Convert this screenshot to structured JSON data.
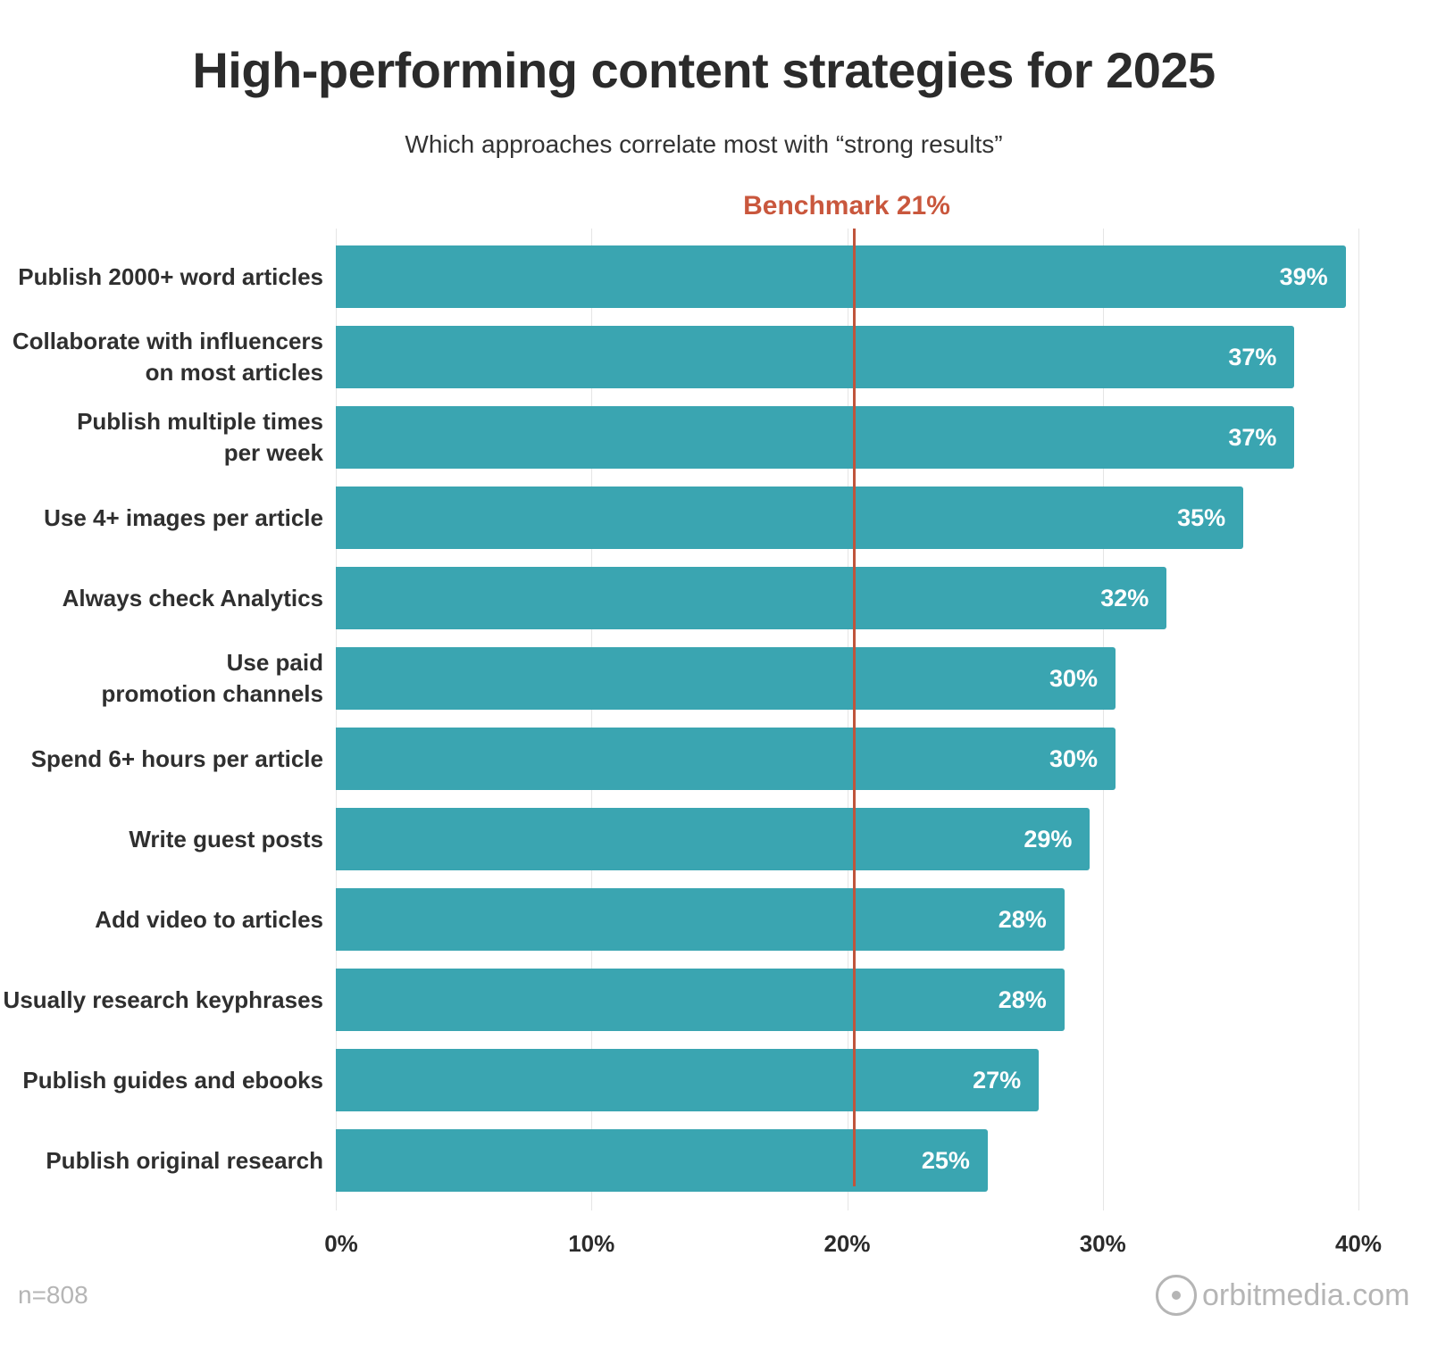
{
  "chart_data": {
    "type": "bar",
    "orientation": "horizontal",
    "title": "High-performing content strategies for 2025",
    "subtitle": "Which approaches correlate most with “strong results”",
    "categories": [
      "Publish 2000+ word articles",
      "Collaborate with influencers\non most articles",
      "Publish multiple times\nper week",
      "Use 4+ images per article",
      "Always check Analytics",
      "Use paid\npromotion channels",
      "Spend 6+ hours per article",
      "Write guest posts",
      "Add video to articles",
      "Usually research keyphrases",
      "Publish guides and ebooks",
      "Publish original research"
    ],
    "values": [
      39,
      37,
      37,
      35,
      32,
      30,
      30,
      29,
      28,
      28,
      27,
      25
    ],
    "value_labels": [
      "39%",
      "37%",
      "37%",
      "35%",
      "32%",
      "30%",
      "30%",
      "29%",
      "28%",
      "28%",
      "27%",
      "25%"
    ],
    "xlim": [
      0,
      40
    ],
    "xticks": [
      0,
      10,
      20,
      30,
      40
    ],
    "xtick_labels": [
      "0%",
      "10%",
      "20%",
      "30%",
      "40%"
    ],
    "benchmark": {
      "value": 21,
      "label": "Benchmark 21%",
      "color": "#c0553c"
    },
    "bar_color": "#3aa5b1",
    "grid": true,
    "xlabel": "",
    "ylabel": ""
  },
  "footer": {
    "sample": "n=808",
    "brand": "orbitmedia.com"
  }
}
